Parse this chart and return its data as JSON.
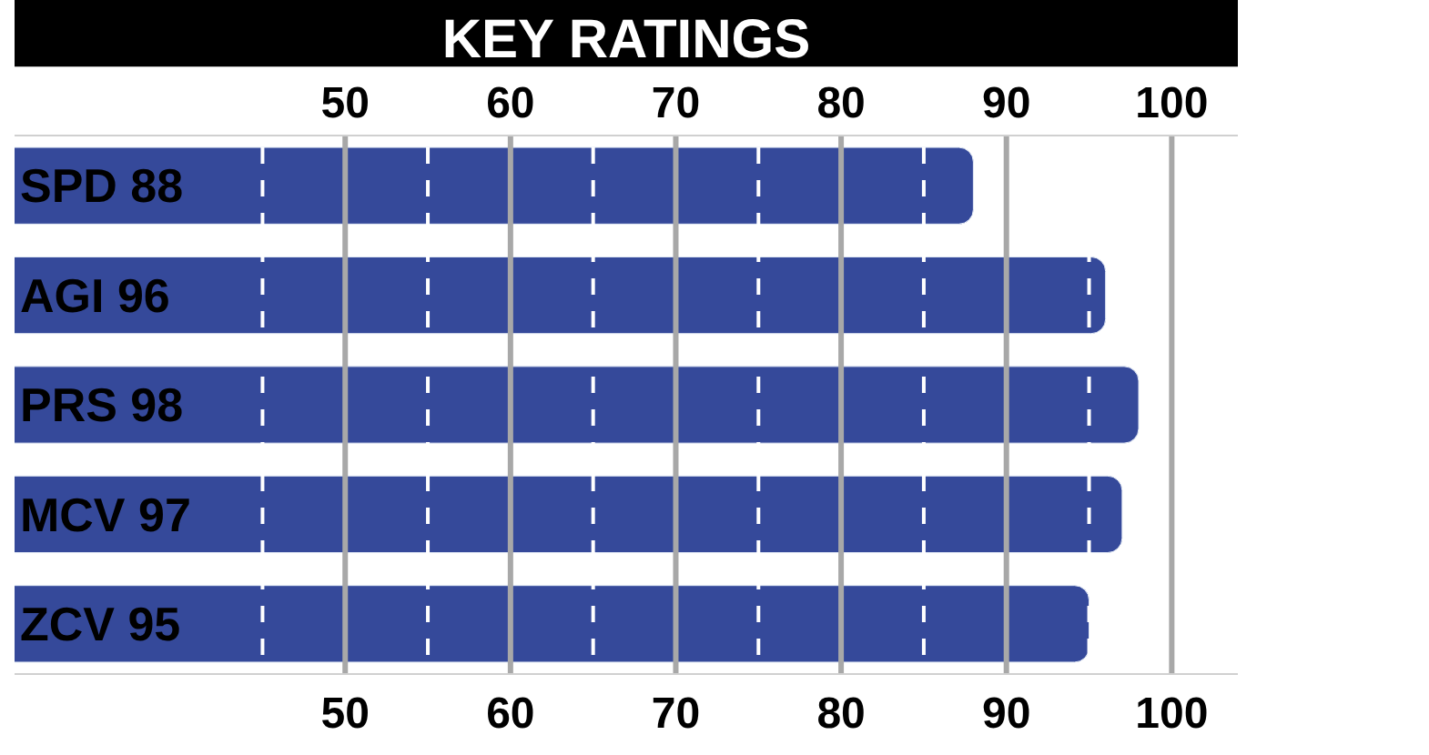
{
  "chart_data": {
    "type": "bar",
    "orientation": "horizontal",
    "title": "KEY RATINGS",
    "categories": [
      "SPD 88",
      "AGI 96",
      "PRS 98",
      "MCV 97",
      "ZCV 95"
    ],
    "values": [
      88,
      96,
      98,
      97,
      95
    ],
    "color": "#35499a",
    "xlim": [
      30,
      104
    ],
    "xticks": [
      50,
      60,
      70,
      80,
      90,
      100
    ],
    "x2lim": [
      30,
      104
    ],
    "x2ticks": [
      50,
      60,
      70,
      80,
      90,
      100
    ],
    "grid": "x",
    "ref_lines": [
      {
        "axis": "x",
        "value": 45,
        "color": "#ffffff",
        "line_style": "dashed"
      },
      {
        "axis": "x",
        "value": 55,
        "color": "#ffffff",
        "line_style": "dashed"
      },
      {
        "axis": "x",
        "value": 65,
        "color": "#ffffff",
        "line_style": "dashed"
      },
      {
        "axis": "x",
        "value": 75,
        "color": "#ffffff",
        "line_style": "dashed"
      },
      {
        "axis": "x",
        "value": 85,
        "color": "#ffffff",
        "line_style": "dashed"
      },
      {
        "axis": "x",
        "value": 95,
        "color": "#ffffff",
        "line_style": "dashed"
      }
    ],
    "legend": false
  }
}
